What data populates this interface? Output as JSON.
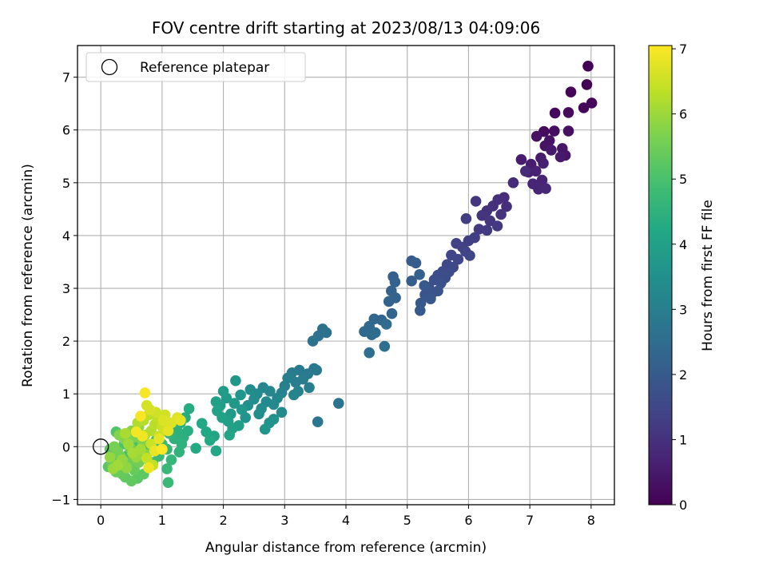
{
  "chart_data": {
    "type": "scatter",
    "title": "FOV centre drift starting at 2023/08/13 04:09:06",
    "xlabel": "Angular distance from reference (arcmin)",
    "ylabel": "Rotation from reference (arcmin)",
    "xlim": [
      -0.38,
      8.38
    ],
    "ylim": [
      -1.1,
      7.6
    ],
    "xticks": [
      0,
      1,
      2,
      3,
      4,
      5,
      6,
      7,
      8
    ],
    "yticks": [
      -1,
      0,
      1,
      2,
      3,
      4,
      5,
      6,
      7
    ],
    "grid": true,
    "legend": {
      "placement": "top-left",
      "entries": [
        "Reference platepar"
      ]
    },
    "reference_point": {
      "x": 0,
      "y": 0
    },
    "colorbar": {
      "label": "Hours from first FF file",
      "range": [
        0,
        7.05
      ],
      "ticks": [
        0,
        1,
        2,
        3,
        4,
        5,
        6,
        7
      ],
      "colormap": "viridis"
    },
    "series": [
      {
        "points": [
          [
            7.95,
            7.21,
            0.0
          ],
          [
            7.93,
            6.86,
            0.03
          ],
          [
            7.67,
            6.72,
            0.06
          ],
          [
            8.01,
            6.51,
            0.09
          ],
          [
            7.88,
            6.42,
            0.12
          ],
          [
            7.41,
            6.32,
            0.15
          ],
          [
            7.63,
            6.33,
            0.18
          ],
          [
            7.23,
            5.97,
            0.22
          ],
          [
            7.4,
            5.98,
            0.25
          ],
          [
            7.63,
            5.98,
            0.28
          ],
          [
            7.11,
            5.88,
            0.31
          ],
          [
            7.32,
            5.8,
            0.34
          ],
          [
            7.25,
            5.7,
            0.37
          ],
          [
            7.53,
            5.65,
            0.4
          ],
          [
            7.58,
            5.52,
            0.43
          ],
          [
            7.35,
            5.62,
            0.46
          ],
          [
            7.5,
            5.49,
            0.49
          ],
          [
            7.18,
            5.47,
            0.52
          ],
          [
            6.86,
            5.44,
            0.55
          ],
          [
            7.02,
            5.35,
            0.58
          ],
          [
            7.22,
            5.37,
            0.61
          ],
          [
            6.98,
            5.2,
            0.64
          ],
          [
            7.1,
            5.22,
            0.67
          ],
          [
            7.2,
            5.05,
            0.7
          ],
          [
            7.05,
            4.98,
            0.73
          ],
          [
            7.14,
            4.88,
            0.76
          ],
          [
            7.26,
            4.89,
            0.8
          ],
          [
            6.93,
            5.22,
            0.83
          ],
          [
            6.73,
            5.0,
            0.86
          ],
          [
            6.58,
            4.72,
            0.89
          ],
          [
            6.62,
            4.55,
            0.92
          ],
          [
            6.48,
            4.68,
            0.95
          ],
          [
            6.4,
            4.56,
            0.98
          ],
          [
            6.3,
            4.47,
            1.01
          ],
          [
            6.53,
            4.4,
            1.04
          ],
          [
            6.22,
            4.38,
            1.07
          ],
          [
            6.35,
            4.28,
            1.1
          ],
          [
            6.12,
            4.65,
            1.13
          ],
          [
            6.47,
            4.18,
            1.16
          ],
          [
            6.17,
            4.12,
            1.19
          ],
          [
            6.3,
            4.1,
            1.22
          ],
          [
            5.96,
            4.32,
            1.25
          ],
          [
            6.0,
            3.9,
            1.28
          ],
          [
            6.1,
            3.96,
            1.31
          ],
          [
            5.9,
            3.78,
            1.35
          ],
          [
            5.8,
            3.85,
            1.38
          ],
          [
            5.95,
            3.7,
            1.41
          ],
          [
            6.02,
            3.62,
            1.44
          ],
          [
            5.72,
            3.63,
            1.47
          ],
          [
            5.83,
            3.55,
            1.5
          ],
          [
            5.65,
            3.45,
            1.53
          ],
          [
            5.75,
            3.4,
            1.56
          ],
          [
            5.68,
            3.31,
            1.59
          ],
          [
            5.58,
            3.32,
            1.62
          ],
          [
            5.5,
            3.25,
            1.65
          ],
          [
            5.62,
            3.2,
            1.68
          ],
          [
            5.44,
            3.16,
            1.71
          ],
          [
            5.55,
            3.1,
            1.74
          ],
          [
            5.35,
            3.02,
            1.77
          ],
          [
            5.5,
            2.95,
            1.8
          ],
          [
            5.4,
            2.9,
            1.83
          ],
          [
            5.29,
            2.88,
            1.86
          ],
          [
            5.38,
            2.8,
            1.9
          ],
          [
            5.22,
            2.72,
            1.93
          ],
          [
            5.28,
            3.05,
            1.96
          ],
          [
            5.21,
            2.58,
            1.99
          ],
          [
            5.07,
            3.52,
            2.02
          ],
          [
            5.14,
            3.48,
            2.05
          ],
          [
            5.07,
            3.14,
            2.08
          ],
          [
            5.2,
            3.26,
            2.11
          ],
          [
            4.77,
            3.22,
            2.14
          ],
          [
            4.8,
            3.12,
            2.17
          ],
          [
            4.74,
            2.95,
            2.2
          ],
          [
            4.81,
            2.82,
            2.23
          ],
          [
            4.7,
            2.75,
            2.26
          ],
          [
            4.75,
            2.52,
            2.29
          ],
          [
            4.58,
            2.4,
            2.32
          ],
          [
            4.46,
            2.42,
            2.35
          ],
          [
            4.38,
            2.28,
            2.38
          ],
          [
            4.3,
            2.18,
            2.41
          ],
          [
            4.42,
            2.12,
            2.45
          ],
          [
            4.66,
            2.32,
            2.48
          ],
          [
            4.48,
            2.16,
            2.51
          ],
          [
            4.38,
            1.78,
            2.54
          ],
          [
            4.63,
            1.9,
            2.57
          ],
          [
            3.62,
            2.23,
            2.6
          ],
          [
            3.68,
            2.16,
            2.63
          ],
          [
            3.55,
            2.1,
            2.66
          ],
          [
            3.46,
            2.0,
            2.69
          ],
          [
            3.88,
            0.82,
            2.72
          ],
          [
            3.54,
            0.47,
            2.75
          ],
          [
            3.48,
            1.48,
            2.78
          ],
          [
            3.52,
            1.45,
            2.81
          ],
          [
            3.38,
            1.38,
            2.84
          ],
          [
            3.24,
            1.45,
            2.87
          ],
          [
            3.12,
            1.4,
            2.9
          ],
          [
            3.3,
            1.28,
            2.93
          ],
          [
            3.18,
            1.22,
            2.96
          ],
          [
            3.4,
            1.12,
            3.0
          ],
          [
            3.05,
            1.3,
            3.03
          ],
          [
            3.0,
            1.15,
            3.06
          ],
          [
            3.22,
            1.05,
            3.09
          ],
          [
            2.95,
            1.02,
            3.12
          ],
          [
            3.15,
            0.98,
            3.15
          ],
          [
            2.88,
            0.92,
            3.18
          ],
          [
            2.76,
            1.05,
            3.21
          ],
          [
            2.65,
            1.12,
            3.24
          ],
          [
            2.82,
            0.8,
            3.27
          ],
          [
            2.7,
            0.85,
            3.3
          ],
          [
            2.55,
            1.0,
            3.33
          ],
          [
            2.95,
            0.65,
            3.36
          ],
          [
            2.62,
            0.72,
            3.39
          ],
          [
            2.5,
            0.9,
            3.42
          ],
          [
            2.44,
            1.08,
            3.45
          ],
          [
            2.58,
            0.62,
            3.48
          ],
          [
            2.4,
            0.78,
            3.51
          ],
          [
            2.75,
            0.45,
            3.55
          ],
          [
            2.82,
            0.52,
            3.58
          ],
          [
            2.68,
            0.33,
            3.61
          ],
          [
            2.36,
            0.55,
            3.64
          ],
          [
            2.28,
            0.98,
            3.67
          ],
          [
            2.2,
            1.25,
            3.7
          ],
          [
            2.3,
            0.7,
            3.73
          ],
          [
            2.18,
            0.82,
            3.76
          ],
          [
            2.12,
            0.62,
            3.79
          ],
          [
            2.05,
            0.92,
            3.82
          ],
          [
            2.0,
            1.05,
            3.85
          ],
          [
            2.25,
            0.4,
            3.88
          ],
          [
            1.95,
            0.78,
            3.91
          ],
          [
            2.08,
            0.48,
            3.94
          ],
          [
            1.88,
            0.85,
            3.97
          ],
          [
            2.15,
            0.35,
            4.0
          ],
          [
            1.98,
            0.55,
            4.03
          ],
          [
            1.9,
            0.68,
            4.06
          ],
          [
            2.1,
            0.22,
            4.1
          ],
          [
            1.85,
            0.2,
            4.13
          ],
          [
            1.88,
            -0.08,
            4.16
          ],
          [
            1.72,
            0.28,
            4.19
          ],
          [
            1.65,
            0.44,
            4.22
          ],
          [
            1.78,
            0.12,
            4.25
          ],
          [
            1.55,
            -0.03,
            4.28
          ],
          [
            1.44,
            0.72,
            4.31
          ],
          [
            1.38,
            0.55,
            4.34
          ],
          [
            1.3,
            0.45,
            4.37
          ],
          [
            1.42,
            0.3,
            4.4
          ],
          [
            1.35,
            0.18,
            4.43
          ],
          [
            1.25,
            0.3,
            4.46
          ],
          [
            1.32,
            0.05,
            4.49
          ],
          [
            1.2,
            0.15,
            4.52
          ],
          [
            1.28,
            -0.1,
            4.55
          ],
          [
            1.12,
            0.25,
            4.58
          ],
          [
            1.08,
            -0.05,
            4.61
          ],
          [
            1.15,
            -0.25,
            4.65
          ],
          [
            1.08,
            -0.42,
            4.68
          ],
          [
            1.1,
            -0.68,
            4.71
          ],
          [
            1.0,
            0.05,
            4.74
          ],
          [
            0.95,
            -0.18,
            4.77
          ],
          [
            0.9,
            0.12,
            4.8
          ],
          [
            0.85,
            -0.3,
            4.83
          ],
          [
            0.78,
            0.02,
            4.86
          ],
          [
            0.72,
            -0.22,
            4.89
          ],
          [
            0.65,
            -0.1,
            4.92
          ],
          [
            0.58,
            0.1,
            4.95
          ],
          [
            0.52,
            -0.35,
            4.98
          ],
          [
            0.45,
            -0.15,
            5.01
          ],
          [
            0.38,
            0.05,
            5.04
          ],
          [
            0.3,
            -0.45,
            5.07
          ],
          [
            0.25,
            0.28,
            5.1
          ],
          [
            0.2,
            -0.25,
            5.13
          ],
          [
            0.15,
            -0.05,
            5.16
          ],
          [
            0.12,
            -0.38,
            5.2
          ],
          [
            0.6,
            -0.6,
            5.23
          ],
          [
            0.7,
            -0.52,
            5.26
          ],
          [
            0.4,
            -0.58,
            5.29
          ],
          [
            0.5,
            -0.65,
            5.32
          ],
          [
            0.35,
            -0.52,
            5.35
          ],
          [
            0.55,
            -0.45,
            5.38
          ],
          [
            0.25,
            -0.48,
            5.41
          ],
          [
            0.18,
            -0.32,
            5.44
          ],
          [
            0.45,
            -0.3,
            5.47
          ],
          [
            0.32,
            -0.18,
            5.5
          ],
          [
            0.62,
            -0.3,
            5.53
          ],
          [
            0.28,
            -0.1,
            5.56
          ],
          [
            0.48,
            -0.02,
            5.59
          ],
          [
            0.22,
            0.0,
            5.62
          ],
          [
            0.55,
            0.18,
            5.65
          ],
          [
            0.38,
            0.15,
            5.68
          ],
          [
            0.68,
            0.1,
            5.71
          ],
          [
            0.3,
            0.22,
            5.75
          ],
          [
            0.75,
            -0.15,
            5.78
          ],
          [
            0.5,
            0.3,
            5.81
          ],
          [
            0.62,
            0.38,
            5.84
          ],
          [
            0.42,
            -0.4,
            5.87
          ],
          [
            0.15,
            -0.2,
            5.9
          ],
          [
            0.35,
            -0.25,
            5.93
          ],
          [
            0.58,
            -0.2,
            5.96
          ],
          [
            0.2,
            -0.42,
            5.99
          ],
          [
            0.45,
            0.05,
            6.02
          ],
          [
            0.28,
            -0.35,
            6.05
          ],
          [
            0.65,
            -0.05,
            6.08
          ],
          [
            0.52,
            -0.12,
            6.11
          ],
          [
            0.4,
            0.25,
            6.14
          ],
          [
            0.72,
            0.22,
            6.17
          ],
          [
            0.6,
            0.45,
            6.2
          ],
          [
            0.82,
            0.3,
            6.23
          ],
          [
            0.7,
            0.5,
            6.26
          ],
          [
            0.88,
            0.42,
            6.3
          ],
          [
            0.78,
            0.6,
            6.33
          ],
          [
            0.92,
            0.55,
            6.36
          ],
          [
            0.85,
            -0.35,
            6.39
          ],
          [
            0.75,
            -0.22,
            6.42
          ],
          [
            0.95,
            0.2,
            6.45
          ],
          [
            0.82,
            0.05,
            6.48
          ],
          [
            1.0,
            0.38,
            6.51
          ],
          [
            0.9,
            0.65,
            6.54
          ],
          [
            1.05,
            0.6,
            6.57
          ],
          [
            0.75,
            0.78,
            6.6
          ],
          [
            0.8,
            0.7,
            6.63
          ],
          [
            1.02,
            0.5,
            6.66
          ],
          [
            1.15,
            0.45,
            6.69
          ],
          [
            1.25,
            0.55,
            6.72
          ],
          [
            1.3,
            0.5,
            6.75
          ],
          [
            1.1,
            0.3,
            6.78
          ],
          [
            0.95,
            0.15,
            6.81
          ],
          [
            0.88,
            -0.08,
            6.85
          ],
          [
            0.78,
            -0.4,
            6.88
          ],
          [
            0.68,
            0.2,
            6.91
          ],
          [
            0.58,
            0.28,
            6.94
          ],
          [
            0.72,
            1.02,
            6.97
          ],
          [
            0.65,
            0.58,
            7.0
          ],
          [
            1.0,
            -0.05,
            7.03
          ]
        ]
      }
    ]
  }
}
